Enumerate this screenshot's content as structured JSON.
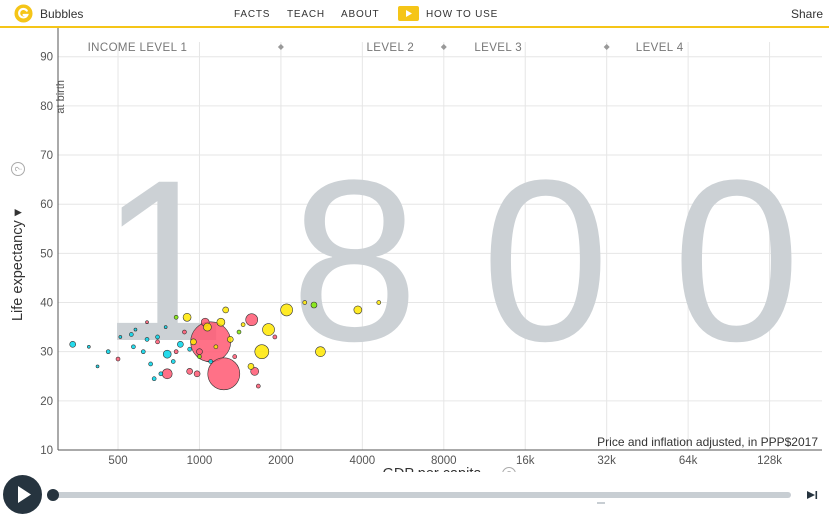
{
  "app": {
    "title": "Bubbles",
    "share_label": "Share",
    "brand_color": "#f5c518"
  },
  "nav": {
    "items": [
      "FACTS",
      "TEACH",
      "ABOUT"
    ],
    "how_to_use": "HOW TO USE"
  },
  "chart_data": {
    "type": "scatter",
    "year_watermark": "1800",
    "x_axis": {
      "label": "GDP per capita",
      "scale": "log",
      "range": [
        300,
        200000
      ],
      "ticks": [
        500,
        1000,
        2000,
        4000,
        8000,
        16000,
        32000,
        64000,
        128000
      ],
      "tick_labels": [
        "500",
        "1000",
        "2000",
        "4000",
        "8000",
        "16k",
        "32k",
        "64k",
        "128k"
      ],
      "note": "Price and inflation adjusted, in PPP$2017"
    },
    "y_axis": {
      "label": "Life expectancy",
      "unit_label": "at birth",
      "range": [
        10,
        93
      ],
      "ticks": [
        10,
        20,
        30,
        40,
        50,
        60,
        70,
        80,
        90
      ]
    },
    "income_levels": {
      "labels": [
        "INCOME LEVEL 1",
        "LEVEL 2",
        "LEVEL 3",
        "LEVEL 4"
      ],
      "boundaries": [
        2000,
        8000,
        32000
      ]
    },
    "grid": true,
    "region_colors": {
      "africa": "#00d5e9",
      "americas": "#7feb00",
      "asia": "#ff5872",
      "europe": "#ffe700"
    },
    "points": [
      {
        "x": 1100,
        "y": 32,
        "r": 20,
        "region": "asia"
      },
      {
        "x": 1230,
        "y": 25.5,
        "r": 16,
        "region": "asia"
      },
      {
        "x": 1560,
        "y": 36.5,
        "r": 6,
        "region": "asia"
      },
      {
        "x": 760,
        "y": 25.5,
        "r": 5,
        "region": "asia"
      },
      {
        "x": 920,
        "y": 26,
        "r": 3,
        "region": "asia"
      },
      {
        "x": 980,
        "y": 25.5,
        "r": 3,
        "region": "asia"
      },
      {
        "x": 1050,
        "y": 36,
        "r": 4,
        "region": "asia"
      },
      {
        "x": 1000,
        "y": 30,
        "r": 3,
        "region": "asia"
      },
      {
        "x": 700,
        "y": 32,
        "r": 2,
        "region": "asia"
      },
      {
        "x": 500,
        "y": 28.5,
        "r": 2,
        "region": "asia"
      },
      {
        "x": 880,
        "y": 34,
        "r": 2,
        "region": "asia"
      },
      {
        "x": 1350,
        "y": 29,
        "r": 2,
        "region": "asia"
      },
      {
        "x": 1650,
        "y": 23,
        "r": 2,
        "region": "asia"
      },
      {
        "x": 640,
        "y": 36,
        "r": 1.5,
        "region": "asia"
      },
      {
        "x": 1900,
        "y": 33,
        "r": 2,
        "region": "asia"
      },
      {
        "x": 820,
        "y": 30,
        "r": 2,
        "region": "asia"
      },
      {
        "x": 1600,
        "y": 26,
        "r": 4,
        "region": "asia"
      },
      {
        "x": 2100,
        "y": 38.5,
        "r": 6,
        "region": "europe"
      },
      {
        "x": 3850,
        "y": 38.5,
        "r": 4,
        "region": "europe"
      },
      {
        "x": 1800,
        "y": 34.5,
        "r": 6,
        "region": "europe"
      },
      {
        "x": 1700,
        "y": 30,
        "r": 7,
        "region": "europe"
      },
      {
        "x": 1200,
        "y": 36,
        "r": 4,
        "region": "europe"
      },
      {
        "x": 900,
        "y": 37,
        "r": 4,
        "region": "europe"
      },
      {
        "x": 2800,
        "y": 30,
        "r": 5,
        "region": "europe"
      },
      {
        "x": 2450,
        "y": 40,
        "r": 2,
        "region": "europe"
      },
      {
        "x": 4600,
        "y": 40,
        "r": 2,
        "region": "europe"
      },
      {
        "x": 1070,
        "y": 35,
        "r": 4,
        "region": "europe"
      },
      {
        "x": 1250,
        "y": 38.5,
        "r": 3,
        "region": "europe"
      },
      {
        "x": 1300,
        "y": 32.5,
        "r": 3,
        "region": "europe"
      },
      {
        "x": 1550,
        "y": 27,
        "r": 3,
        "region": "europe"
      },
      {
        "x": 950,
        "y": 32,
        "r": 3,
        "region": "europe"
      },
      {
        "x": 1150,
        "y": 31,
        "r": 2,
        "region": "europe"
      },
      {
        "x": 1450,
        "y": 35.5,
        "r": 2,
        "region": "europe"
      },
      {
        "x": 2650,
        "y": 39.5,
        "r": 3,
        "region": "americas"
      },
      {
        "x": 1400,
        "y": 34,
        "r": 2,
        "region": "americas"
      },
      {
        "x": 820,
        "y": 37,
        "r": 2,
        "region": "americas"
      },
      {
        "x": 1000,
        "y": 29,
        "r": 2,
        "region": "americas"
      },
      {
        "x": 340,
        "y": 31.5,
        "r": 3,
        "region": "africa"
      },
      {
        "x": 760,
        "y": 29.5,
        "r": 4,
        "region": "africa"
      },
      {
        "x": 570,
        "y": 31,
        "r": 2,
        "region": "africa"
      },
      {
        "x": 620,
        "y": 30,
        "r": 2,
        "region": "africa"
      },
      {
        "x": 660,
        "y": 27.5,
        "r": 2,
        "region": "africa"
      },
      {
        "x": 720,
        "y": 25.5,
        "r": 2,
        "region": "africa"
      },
      {
        "x": 800,
        "y": 28,
        "r": 2,
        "region": "africa"
      },
      {
        "x": 560,
        "y": 33.5,
        "r": 2,
        "region": "africa"
      },
      {
        "x": 640,
        "y": 32.5,
        "r": 2,
        "region": "africa"
      },
      {
        "x": 460,
        "y": 30,
        "r": 2,
        "region": "africa"
      },
      {
        "x": 390,
        "y": 31,
        "r": 1.5,
        "region": "africa"
      },
      {
        "x": 850,
        "y": 31.5,
        "r": 3,
        "region": "africa"
      },
      {
        "x": 1100,
        "y": 28,
        "r": 2,
        "region": "africa"
      },
      {
        "x": 680,
        "y": 24.5,
        "r": 2,
        "region": "africa"
      },
      {
        "x": 580,
        "y": 34.5,
        "r": 1.5,
        "region": "africa"
      },
      {
        "x": 700,
        "y": 33,
        "r": 2,
        "region": "africa"
      },
      {
        "x": 750,
        "y": 35,
        "r": 1.5,
        "region": "africa"
      },
      {
        "x": 920,
        "y": 30.5,
        "r": 2,
        "region": "africa"
      },
      {
        "x": 420,
        "y": 27,
        "r": 1.5,
        "region": "africa"
      },
      {
        "x": 510,
        "y": 33,
        "r": 1.5,
        "region": "africa"
      }
    ]
  }
}
